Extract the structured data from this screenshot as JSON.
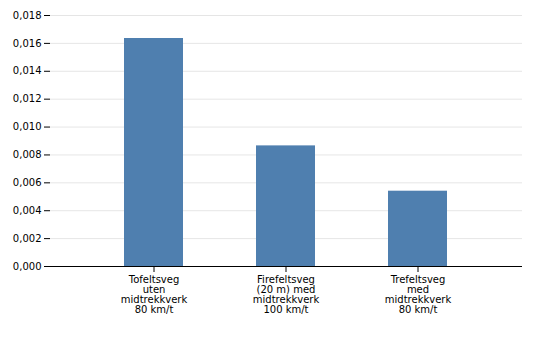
{
  "chart_data": {
    "type": "bar",
    "categories": [
      "Tofeltsveg\nuten\nmidtrekkverk\n80 km/t",
      "Firefeltsveg\n(20 m) med\nmidtrekkverk\n100 km/t",
      "Trefeltsveg\nmed\nmidtrekkverk\n80 km/t"
    ],
    "values": [
      0.01635,
      0.00865,
      0.0054
    ],
    "color": "#4f7faf",
    "ylim": [
      0,
      0.018
    ],
    "yticks": [
      {
        "value": 0.0,
        "label": "0,000"
      },
      {
        "value": 0.002,
        "label": "0,002"
      },
      {
        "value": 0.004,
        "label": "0,004"
      },
      {
        "value": 0.006,
        "label": "0,006"
      },
      {
        "value": 0.008,
        "label": "0,008"
      },
      {
        "value": 0.01,
        "label": "0,010"
      },
      {
        "value": 0.012,
        "label": "0,012"
      },
      {
        "value": 0.014,
        "label": "0,014"
      },
      {
        "value": 0.016,
        "label": "0,016"
      },
      {
        "value": 0.018,
        "label": "0,018"
      }
    ],
    "grid": true
  }
}
